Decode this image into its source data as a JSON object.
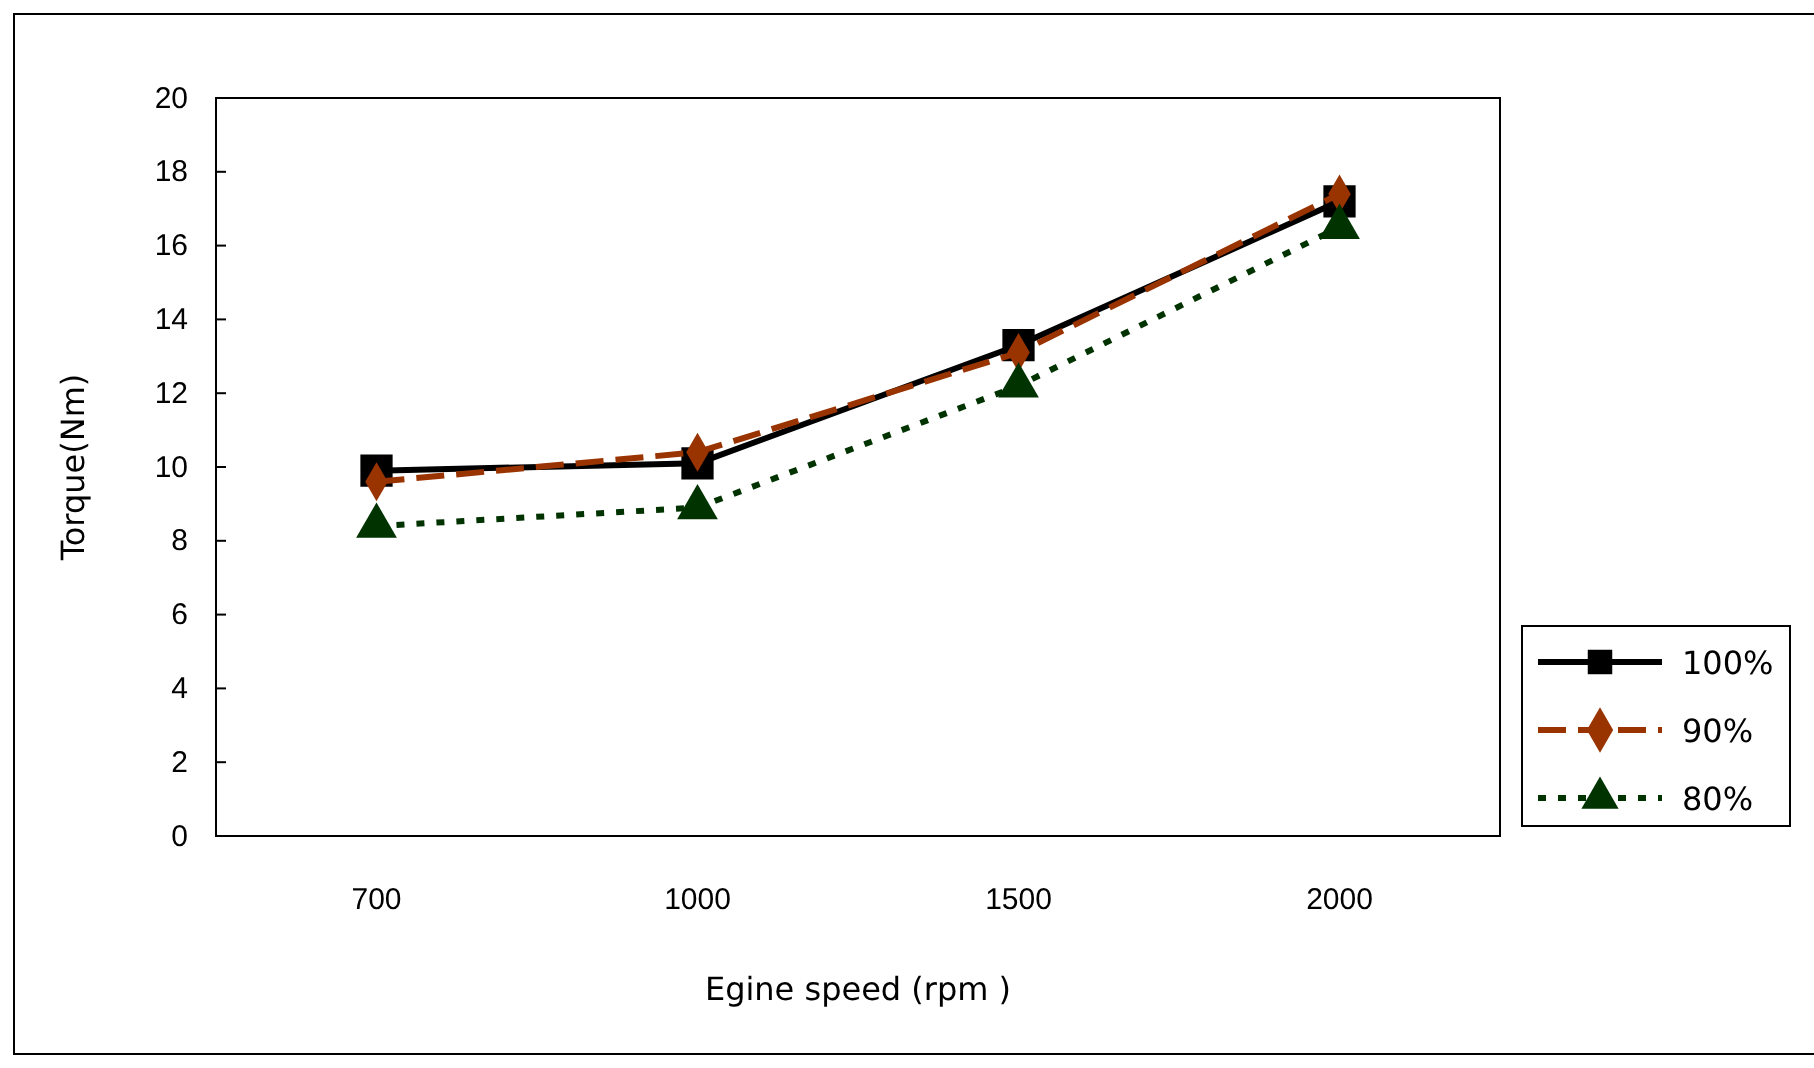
{
  "chart_data": {
    "type": "line",
    "xlabel": "Egine speed (rpm )",
    "ylabel": "Torque(Nm)",
    "categories": [
      "700",
      "1000",
      "1500",
      "2000"
    ],
    "ylim": [
      0,
      20
    ],
    "yticks": [
      0,
      2,
      4,
      6,
      8,
      10,
      12,
      14,
      16,
      18,
      20
    ],
    "grid": false,
    "legend": "right",
    "series": [
      {
        "name": "100%",
        "color": "#000000",
        "marker": "square",
        "line_style": "solid",
        "values": [
          9.9,
          10.1,
          13.3,
          17.2
        ]
      },
      {
        "name": "90%",
        "color": "#993300",
        "marker": "diamond",
        "line_style": "dashed",
        "values": [
          9.6,
          10.4,
          13.1,
          17.4
        ]
      },
      {
        "name": "80%",
        "color": "#003300",
        "marker": "triangle",
        "line_style": "dotted",
        "values": [
          8.4,
          8.9,
          12.2,
          16.5
        ]
      }
    ]
  }
}
